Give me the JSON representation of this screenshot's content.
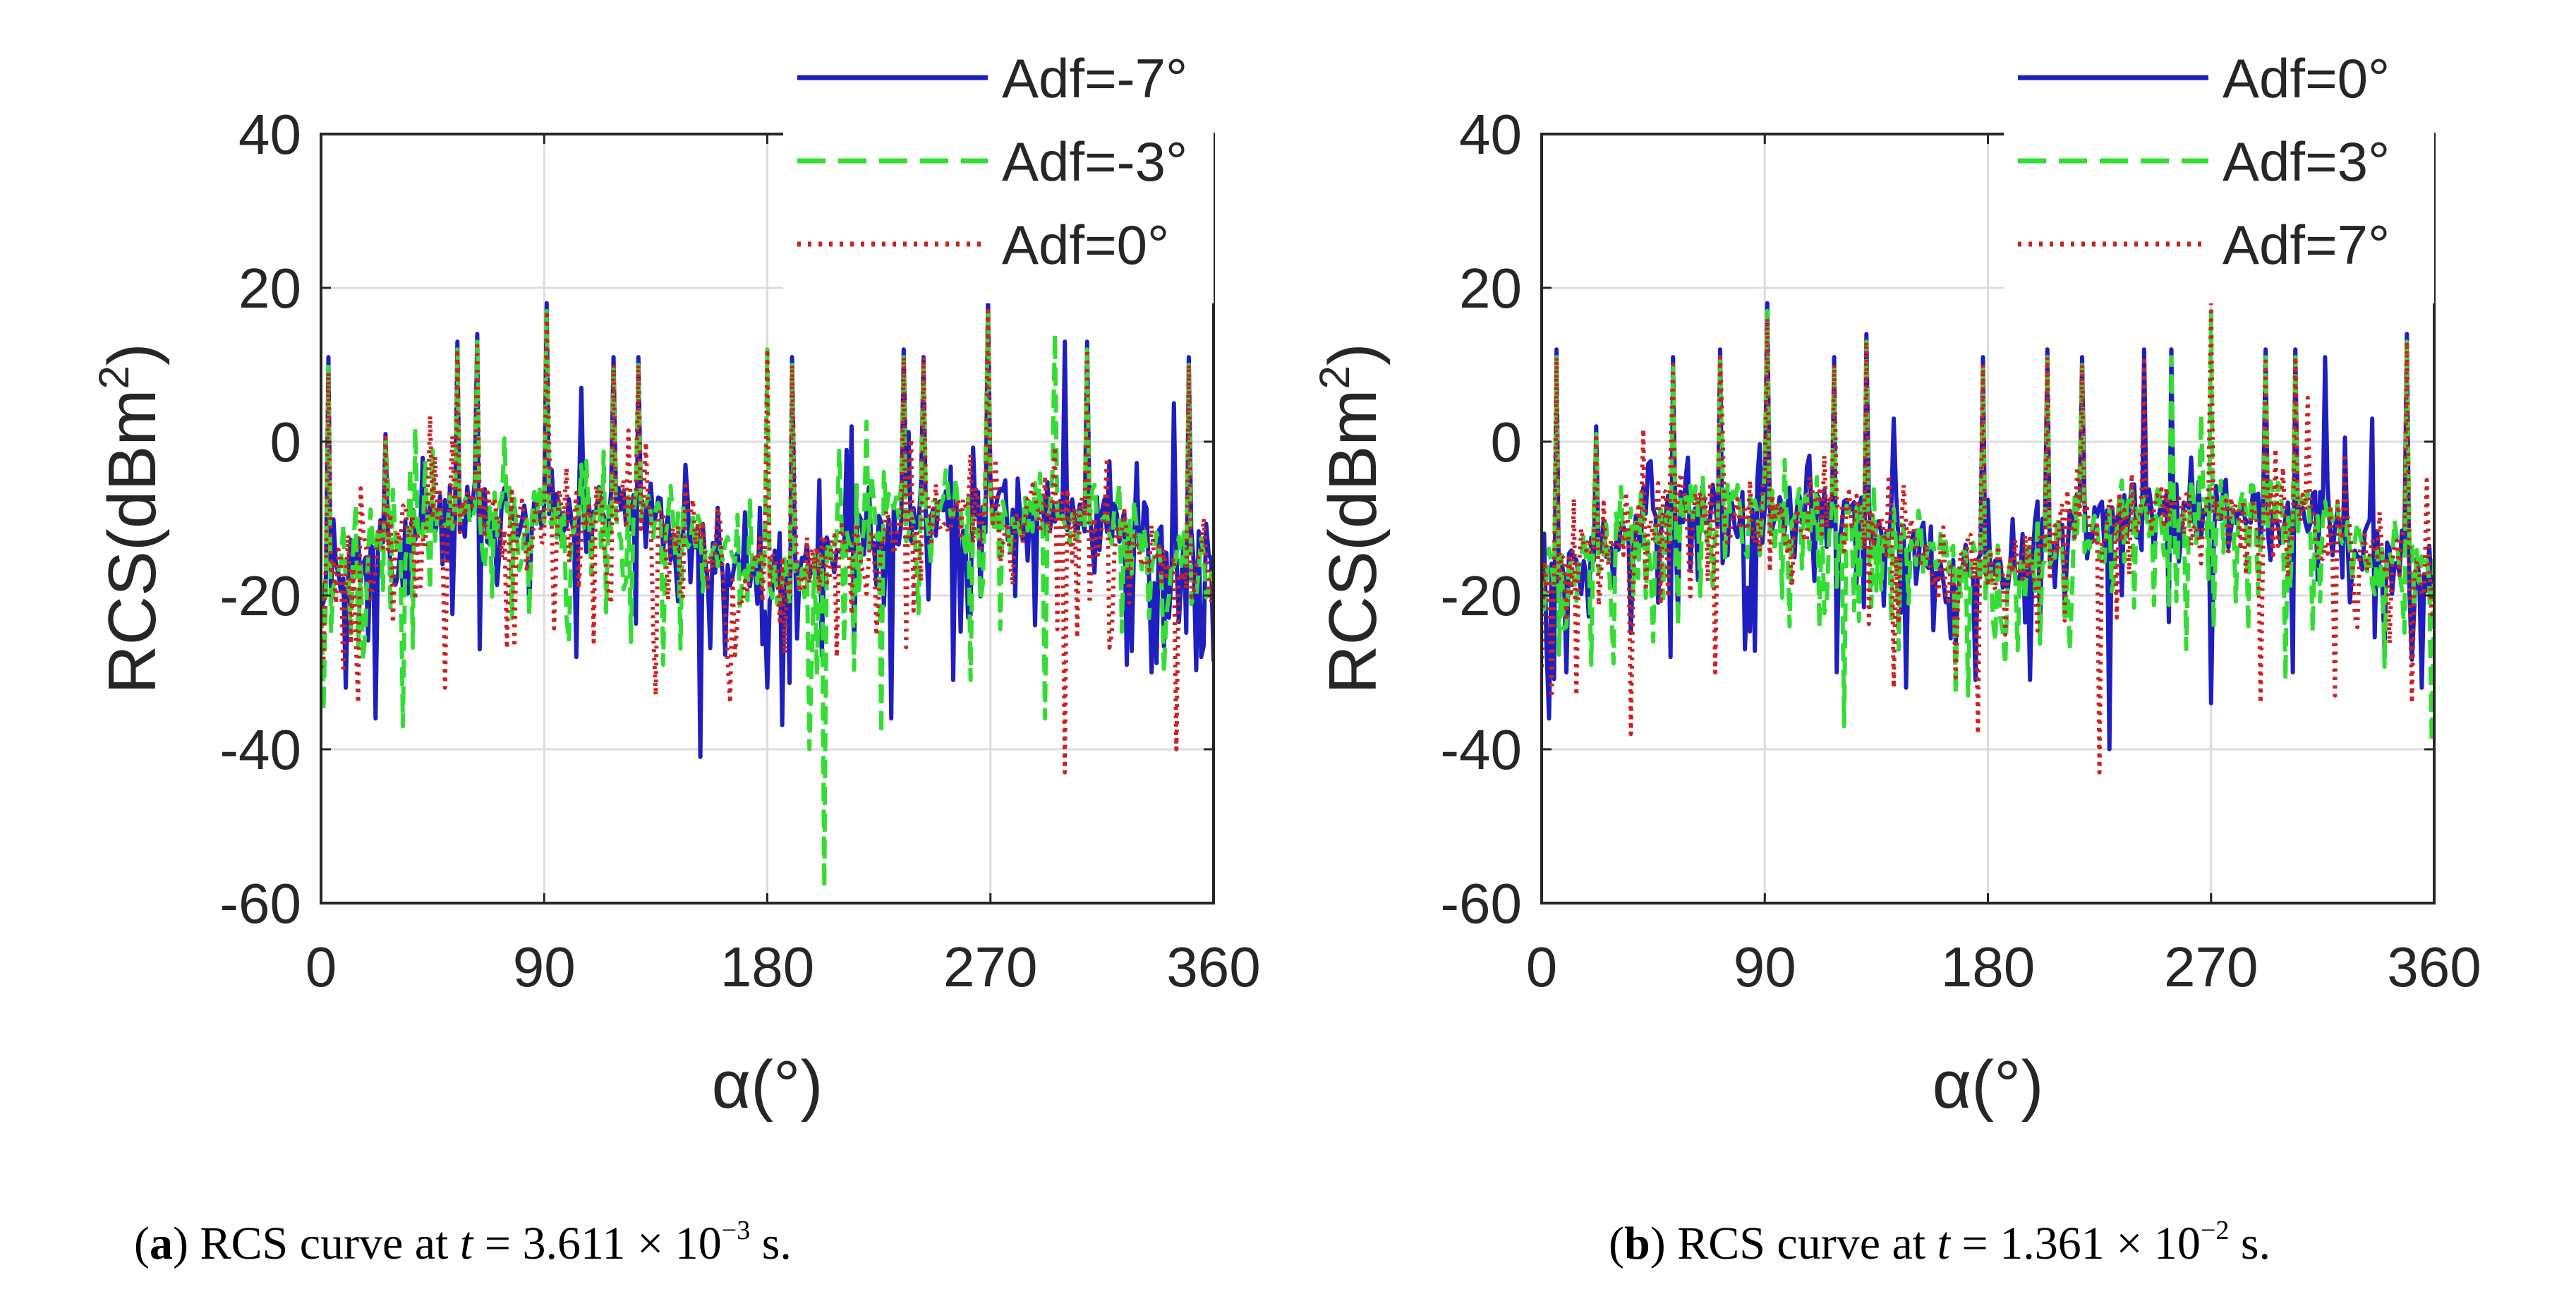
{
  "chart_data": [
    {
      "id": "a",
      "type": "line",
      "xlabel": "α(°)",
      "ylabel": "RCS(dBm",
      "ylabel_exp": "2",
      "xlim": [
        0,
        360
      ],
      "ylim": [
        -60,
        40
      ],
      "xticks": [
        0,
        90,
        180,
        270,
        360
      ],
      "yticks": [
        -60,
        -40,
        -20,
        0,
        20,
        40
      ],
      "grid": true,
      "legend_position": "top-right",
      "caption": {
        "label": "a",
        "text": " RCS curve at ",
        "var": "t",
        "value": " = 3.611 × 10",
        "exponent": "−3",
        "unit": " s."
      },
      "series": [
        {
          "name": "Adf=-7°",
          "color": "#1f1fbf",
          "style": "solid",
          "seed": 11,
          "spikes": [
            [
              3,
              11
            ],
            [
              26,
              1
            ],
            [
              55,
              13
            ],
            [
              63,
              14
            ],
            [
              91,
              18
            ],
            [
              105,
              7
            ],
            [
              118,
              11
            ],
            [
              128,
              11
            ],
            [
              147,
              -3
            ],
            [
              180,
              13
            ],
            [
              190,
              11
            ],
            [
              214,
              2
            ],
            [
              235,
              12
            ],
            [
              243,
              11
            ],
            [
              269,
              18
            ],
            [
              300,
              13
            ],
            [
              309,
              13
            ],
            [
              344,
              5
            ],
            [
              350,
              11
            ]
          ],
          "dips": [
            [
              10,
              -32
            ],
            [
              22,
              -36
            ],
            [
              64,
              -27
            ],
            [
              103,
              -28
            ],
            [
              153,
              -41
            ],
            [
              180,
              -32
            ],
            [
              215,
              -27
            ],
            [
              230,
              -36
            ],
            [
              255,
              -31
            ],
            [
              335,
              -30
            ],
            [
              355,
              -28
            ]
          ]
        },
        {
          "name": "Adf=-3°",
          "color": "#33dd33",
          "style": "dashed",
          "seed": 23,
          "spikes": [
            [
              3,
              10
            ],
            [
              26,
              0
            ],
            [
              55,
              12
            ],
            [
              63,
              13
            ],
            [
              91,
              17
            ],
            [
              118,
              10
            ],
            [
              128,
              10
            ],
            [
              180,
              12
            ],
            [
              190,
              10
            ],
            [
              235,
              11
            ],
            [
              243,
              10
            ],
            [
              269,
              17
            ],
            [
              296,
              14
            ],
            [
              309,
              12
            ],
            [
              350,
              10
            ]
          ],
          "dips": [
            [
              1,
              -35
            ],
            [
              33,
              -37
            ],
            [
              100,
              -26
            ],
            [
              138,
              -29
            ],
            [
              197,
              -40
            ],
            [
              203,
              -58
            ],
            [
              226,
              -38
            ],
            [
              262,
              -31
            ],
            [
              292,
              -36
            ],
            [
              340,
              -30
            ]
          ]
        },
        {
          "name": "Adf=0°",
          "color": "#cc2222",
          "style": "dotted",
          "seed": 37,
          "spikes": [
            [
              3,
              9
            ],
            [
              26,
              1
            ],
            [
              55,
              12
            ],
            [
              63,
              13
            ],
            [
              91,
              17
            ],
            [
              118,
              10
            ],
            [
              128,
              10
            ],
            [
              180,
              12
            ],
            [
              190,
              10
            ],
            [
              235,
              11
            ],
            [
              243,
              11
            ],
            [
              269,
              17
            ],
            [
              300,
              12
            ],
            [
              309,
              12
            ],
            [
              350,
              10
            ]
          ],
          "dips": [
            [
              9,
              -30
            ],
            [
              15,
              -34
            ],
            [
              50,
              -32
            ],
            [
              110,
              -26
            ],
            [
              135,
              -33
            ],
            [
              165,
              -34
            ],
            [
              208,
              -28
            ],
            [
              300,
              -43
            ],
            [
              345,
              -40
            ]
          ]
        }
      ]
    },
    {
      "id": "b",
      "type": "line",
      "xlabel": "α(°)",
      "ylabel": "RCS(dBm",
      "ylabel_exp": "2",
      "xlim": [
        0,
        360
      ],
      "ylim": [
        -60,
        40
      ],
      "xticks": [
        0,
        90,
        180,
        270,
        360
      ],
      "yticks": [
        -60,
        -40,
        -20,
        0,
        20,
        40
      ],
      "grid": true,
      "legend_position": "top-right",
      "caption": {
        "label": "b",
        "text": " RCS curve at ",
        "var": "t",
        "value": " = 1.361 × 10",
        "exponent": "−2",
        "unit": " s."
      },
      "series": [
        {
          "name": "Adf=0°",
          "color": "#1f1fbf",
          "style": "solid",
          "seed": 53,
          "spikes": [
            [
              6,
              12
            ],
            [
              22,
              2
            ],
            [
              53,
              11
            ],
            [
              72,
              12
            ],
            [
              91,
              18
            ],
            [
              118,
              11
            ],
            [
              131,
              14
            ],
            [
              142,
              3
            ],
            [
              178,
              11
            ],
            [
              204,
              12
            ],
            [
              218,
              11
            ],
            [
              243,
              12
            ],
            [
              254,
              12
            ],
            [
              270,
              18
            ],
            [
              292,
              12
            ],
            [
              304,
              12
            ],
            [
              316,
              11
            ],
            [
              335,
              3
            ],
            [
              349,
              14
            ]
          ],
          "dips": [
            [
              3,
              -36
            ],
            [
              10,
              -30
            ],
            [
              52,
              -28
            ],
            [
              82,
              -27
            ],
            [
              119,
              -30
            ],
            [
              147,
              -32
            ],
            [
              175,
              -31
            ],
            [
              229,
              -40
            ],
            [
              270,
              -34
            ],
            [
              303,
              -30
            ],
            [
              355,
              -32
            ]
          ]
        },
        {
          "name": "Adf=3°",
          "color": "#33dd33",
          "style": "dashed",
          "seed": 71,
          "spikes": [
            [
              6,
              11
            ],
            [
              22,
              1
            ],
            [
              53,
              10
            ],
            [
              72,
              11
            ],
            [
              91,
              17
            ],
            [
              118,
              10
            ],
            [
              131,
              13
            ],
            [
              178,
              10
            ],
            [
              204,
              11
            ],
            [
              218,
              10
            ],
            [
              254,
              11
            ],
            [
              270,
              17
            ],
            [
              292,
              11
            ],
            [
              304,
              11
            ],
            [
              349,
              13
            ]
          ],
          "dips": [
            [
              20,
              -29
            ],
            [
              45,
              -26
            ],
            [
              100,
              -24
            ],
            [
              122,
              -37
            ],
            [
              172,
              -33
            ],
            [
              260,
              -27
            ],
            [
              300,
              -31
            ],
            [
              359,
              -39
            ]
          ]
        },
        {
          "name": "Adf=7°",
          "color": "#cc2222",
          "style": "dotted",
          "seed": 97,
          "spikes": [
            [
              6,
              11
            ],
            [
              22,
              1
            ],
            [
              53,
              10
            ],
            [
              72,
              11
            ],
            [
              91,
              16
            ],
            [
              118,
              10
            ],
            [
              131,
              13
            ],
            [
              178,
              10
            ],
            [
              204,
              11
            ],
            [
              218,
              10
            ],
            [
              243,
              11
            ],
            [
              270,
              18
            ],
            [
              292,
              11
            ],
            [
              304,
              11
            ],
            [
              349,
              13
            ]
          ],
          "dips": [
            [
              14,
              -33
            ],
            [
              36,
              -38
            ],
            [
              70,
              -30
            ],
            [
              142,
              -32
            ],
            [
              176,
              -38
            ],
            [
              225,
              -43
            ],
            [
              290,
              -34
            ],
            [
              320,
              -33
            ],
            [
              351,
              -34
            ]
          ]
        }
      ]
    }
  ]
}
